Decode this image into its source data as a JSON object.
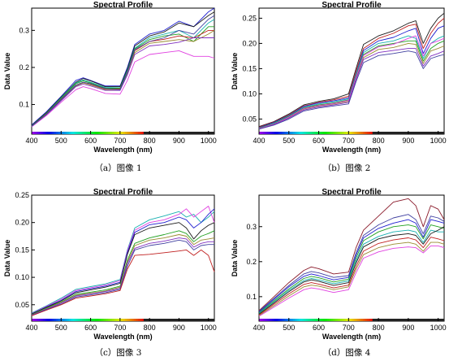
{
  "chart_data": [
    {
      "type": "line",
      "title": "Spectral Profile",
      "xlabel": "Wavelength (nm)",
      "ylabel": "Data Value",
      "caption": "（a）图像 1",
      "xlim": [
        400,
        1020
      ],
      "ylim": [
        0.02,
        0.36
      ],
      "x_ticks": [
        "400",
        "500",
        "600",
        "700",
        "800",
        "900",
        "1000"
      ],
      "y_ticks": [
        "0.1",
        "0.2",
        "0.3"
      ],
      "x": [
        400,
        450,
        500,
        550,
        575,
        600,
        650,
        700,
        725,
        750,
        800,
        850,
        900,
        950,
        1000,
        1020
      ],
      "series": [
        {
          "color": "#1f1fd0",
          "values": [
            0.045,
            0.08,
            0.122,
            0.165,
            0.172,
            0.165,
            0.15,
            0.15,
            0.2,
            0.262,
            0.29,
            0.3,
            0.325,
            0.31,
            0.35,
            0.36
          ]
        },
        {
          "color": "#1a1a1a",
          "values": [
            0.043,
            0.078,
            0.12,
            0.16,
            0.17,
            0.164,
            0.148,
            0.148,
            0.196,
            0.258,
            0.285,
            0.296,
            0.32,
            0.31,
            0.34,
            0.35
          ]
        },
        {
          "color": "#18b0b0",
          "values": [
            0.042,
            0.076,
            0.118,
            0.158,
            0.166,
            0.16,
            0.146,
            0.145,
            0.192,
            0.252,
            0.28,
            0.29,
            0.3,
            0.28,
            0.32,
            0.33
          ]
        },
        {
          "color": "#20a020",
          "values": [
            0.042,
            0.075,
            0.116,
            0.156,
            0.164,
            0.158,
            0.144,
            0.144,
            0.19,
            0.25,
            0.275,
            0.285,
            0.29,
            0.27,
            0.31,
            0.31
          ]
        },
        {
          "color": "#c02020",
          "values": [
            0.041,
            0.074,
            0.114,
            0.152,
            0.16,
            0.155,
            0.142,
            0.142,
            0.186,
            0.245,
            0.27,
            0.276,
            0.285,
            0.28,
            0.3,
            0.3
          ]
        },
        {
          "color": "#9a8a30",
          "values": [
            0.041,
            0.073,
            0.112,
            0.15,
            0.158,
            0.153,
            0.14,
            0.14,
            0.184,
            0.24,
            0.265,
            0.27,
            0.275,
            0.27,
            0.29,
            0.3
          ]
        },
        {
          "color": "#8030c0",
          "values": [
            0.04,
            0.072,
            0.11,
            0.148,
            0.155,
            0.15,
            0.138,
            0.138,
            0.18,
            0.235,
            0.258,
            0.262,
            0.268,
            0.28,
            0.28,
            0.28
          ]
        },
        {
          "color": "#e040e0",
          "values": [
            0.04,
            0.07,
            0.106,
            0.14,
            0.148,
            0.143,
            0.13,
            0.128,
            0.165,
            0.215,
            0.235,
            0.24,
            0.245,
            0.23,
            0.23,
            0.225
          ]
        },
        {
          "color": "#4040a0",
          "values": [
            0.041,
            0.073,
            0.113,
            0.152,
            0.16,
            0.156,
            0.143,
            0.14,
            0.188,
            0.248,
            0.27,
            0.28,
            0.3,
            0.29,
            0.33,
            0.34
          ]
        }
      ]
    },
    {
      "type": "line",
      "title": "Spectral Profile",
      "xlabel": "Wavelength (nm)",
      "ylabel": "Data Value",
      "caption": "（b）图像 2",
      "xlim": [
        400,
        1020
      ],
      "ylim": [
        0.02,
        0.27
      ],
      "x_ticks": [
        "400",
        "500",
        "600",
        "700",
        "800",
        "900",
        "1000"
      ],
      "y_ticks": [
        "0.05",
        "0.10",
        "0.15",
        "0.20",
        "0.25"
      ],
      "x": [
        400,
        450,
        500,
        550,
        600,
        650,
        700,
        725,
        750,
        800,
        850,
        900,
        925,
        950,
        975,
        1000,
        1020
      ],
      "series": [
        {
          "color": "#1a1a1a",
          "values": [
            0.035,
            0.045,
            0.06,
            0.078,
            0.085,
            0.09,
            0.1,
            0.15,
            0.198,
            0.215,
            0.225,
            0.24,
            0.245,
            0.2,
            0.23,
            0.25,
            0.26
          ]
        },
        {
          "color": "#c02020",
          "values": [
            0.034,
            0.044,
            0.058,
            0.076,
            0.083,
            0.088,
            0.095,
            0.145,
            0.19,
            0.21,
            0.22,
            0.235,
            0.238,
            0.19,
            0.22,
            0.24,
            0.25
          ]
        },
        {
          "color": "#1f1fd0",
          "values": [
            0.033,
            0.043,
            0.057,
            0.075,
            0.082,
            0.086,
            0.092,
            0.14,
            0.186,
            0.205,
            0.212,
            0.225,
            0.23,
            0.18,
            0.21,
            0.23,
            0.235
          ]
        },
        {
          "color": "#18b0b0",
          "values": [
            0.032,
            0.042,
            0.056,
            0.073,
            0.08,
            0.084,
            0.09,
            0.138,
            0.182,
            0.2,
            0.205,
            0.215,
            0.21,
            0.17,
            0.2,
            0.21,
            0.215
          ]
        },
        {
          "color": "#20a020",
          "values": [
            0.032,
            0.041,
            0.055,
            0.072,
            0.078,
            0.082,
            0.088,
            0.135,
            0.178,
            0.195,
            0.2,
            0.205,
            0.205,
            0.165,
            0.19,
            0.2,
            0.205
          ]
        },
        {
          "color": "#9a8a30",
          "values": [
            0.031,
            0.04,
            0.053,
            0.07,
            0.076,
            0.08,
            0.085,
            0.13,
            0.172,
            0.188,
            0.192,
            0.2,
            0.198,
            0.16,
            0.185,
            0.19,
            0.195
          ]
        },
        {
          "color": "#e040e0",
          "values": [
            0.031,
            0.04,
            0.054,
            0.071,
            0.077,
            0.081,
            0.087,
            0.133,
            0.176,
            0.193,
            0.198,
            0.21,
            0.215,
            0.175,
            0.2,
            0.205,
            0.21
          ]
        },
        {
          "color": "#8030c0",
          "values": [
            0.03,
            0.039,
            0.052,
            0.068,
            0.074,
            0.078,
            0.083,
            0.128,
            0.168,
            0.182,
            0.186,
            0.19,
            0.19,
            0.155,
            0.175,
            0.18,
            0.185
          ]
        },
        {
          "color": "#4040a0",
          "values": [
            0.03,
            0.038,
            0.05,
            0.066,
            0.072,
            0.076,
            0.08,
            0.124,
            0.162,
            0.176,
            0.18,
            0.185,
            0.182,
            0.15,
            0.17,
            0.175,
            0.178
          ]
        }
      ]
    },
    {
      "type": "line",
      "title": "Spectral Profile",
      "xlabel": "Wavelength (nm)",
      "ylabel": "Data Value",
      "caption": "（c）图像 3",
      "xlim": [
        400,
        1020
      ],
      "ylim": [
        0.02,
        0.25
      ],
      "x_ticks": [
        "400",
        "500",
        "600",
        "700",
        "800",
        "900",
        "1000"
      ],
      "y_ticks": [
        "0.05",
        "0.10",
        "0.15",
        "0.20",
        "0.25"
      ],
      "x": [
        400,
        450,
        500,
        550,
        600,
        650,
        700,
        725,
        750,
        800,
        850,
        900,
        925,
        950,
        975,
        1000,
        1020
      ],
      "series": [
        {
          "color": "#18b0b0",
          "values": [
            0.035,
            0.048,
            0.062,
            0.078,
            0.083,
            0.088,
            0.096,
            0.15,
            0.19,
            0.205,
            0.212,
            0.22,
            0.21,
            0.215,
            0.2,
            0.21,
            0.22
          ]
        },
        {
          "color": "#e040e0",
          "values": [
            0.034,
            0.047,
            0.06,
            0.076,
            0.081,
            0.086,
            0.094,
            0.148,
            0.186,
            0.2,
            0.205,
            0.215,
            0.225,
            0.21,
            0.22,
            0.23,
            0.2
          ]
        },
        {
          "color": "#1f1fd0",
          "values": [
            0.033,
            0.046,
            0.058,
            0.074,
            0.079,
            0.084,
            0.091,
            0.145,
            0.182,
            0.196,
            0.2,
            0.21,
            0.205,
            0.19,
            0.2,
            0.215,
            0.225
          ]
        },
        {
          "color": "#1a1a1a",
          "values": [
            0.033,
            0.045,
            0.057,
            0.072,
            0.077,
            0.082,
            0.089,
            0.142,
            0.178,
            0.19,
            0.195,
            0.2,
            0.19,
            0.17,
            0.185,
            0.195,
            0.2
          ]
        },
        {
          "color": "#20a020",
          "values": [
            0.032,
            0.044,
            0.055,
            0.069,
            0.073,
            0.077,
            0.084,
            0.132,
            0.162,
            0.172,
            0.178,
            0.185,
            0.18,
            0.165,
            0.175,
            0.18,
            0.185
          ]
        },
        {
          "color": "#9a8a30",
          "values": [
            0.031,
            0.043,
            0.054,
            0.067,
            0.071,
            0.075,
            0.082,
            0.128,
            0.158,
            0.168,
            0.172,
            0.178,
            0.175,
            0.16,
            0.168,
            0.17,
            0.172
          ]
        },
        {
          "color": "#8030c0",
          "values": [
            0.031,
            0.042,
            0.053,
            0.066,
            0.07,
            0.074,
            0.08,
            0.125,
            0.153,
            0.162,
            0.166,
            0.172,
            0.17,
            0.155,
            0.162,
            0.165,
            0.165
          ]
        },
        {
          "color": "#4040a0",
          "values": [
            0.03,
            0.041,
            0.051,
            0.064,
            0.068,
            0.072,
            0.078,
            0.12,
            0.15,
            0.158,
            0.162,
            0.168,
            0.165,
            0.15,
            0.158,
            0.16,
            0.16
          ]
        },
        {
          "color": "#c02020",
          "values": [
            0.03,
            0.04,
            0.05,
            0.062,
            0.066,
            0.07,
            0.076,
            0.115,
            0.14,
            0.142,
            0.145,
            0.148,
            0.15,
            0.14,
            0.15,
            0.14,
            0.11
          ]
        }
      ]
    },
    {
      "type": "line",
      "title": "Spectral Profile",
      "xlabel": "Wavelength (nm)",
      "ylabel": "Data Value",
      "caption": "（d）图像 4",
      "xlim": [
        400,
        1020
      ],
      "ylim": [
        0.03,
        0.39
      ],
      "x_ticks": [
        "400",
        "500",
        "600",
        "700",
        "800",
        "900",
        "1000"
      ],
      "y_ticks": [
        "0.1",
        "0.2",
        "0.3"
      ],
      "x": [
        400,
        450,
        500,
        550,
        575,
        600,
        650,
        700,
        725,
        750,
        800,
        850,
        900,
        925,
        950,
        975,
        1000,
        1020
      ],
      "series": [
        {
          "color": "#8a1a2a",
          "values": [
            0.06,
            0.1,
            0.14,
            0.175,
            0.185,
            0.18,
            0.165,
            0.17,
            0.24,
            0.29,
            0.33,
            0.37,
            0.38,
            0.36,
            0.3,
            0.36,
            0.35,
            0.32
          ]
        },
        {
          "color": "#4040a0",
          "values": [
            0.058,
            0.095,
            0.132,
            0.165,
            0.172,
            0.168,
            0.155,
            0.16,
            0.225,
            0.275,
            0.305,
            0.325,
            0.335,
            0.32,
            0.28,
            0.33,
            0.325,
            0.315
          ]
        },
        {
          "color": "#1f1fd0",
          "values": [
            0.056,
            0.092,
            0.128,
            0.158,
            0.165,
            0.16,
            0.148,
            0.155,
            0.218,
            0.268,
            0.295,
            0.31,
            0.32,
            0.31,
            0.27,
            0.32,
            0.315,
            0.31
          ]
        },
        {
          "color": "#20a020",
          "values": [
            0.054,
            0.088,
            0.122,
            0.152,
            0.158,
            0.154,
            0.142,
            0.15,
            0.21,
            0.26,
            0.285,
            0.3,
            0.305,
            0.3,
            0.265,
            0.305,
            0.3,
            0.295
          ]
        },
        {
          "color": "#18b0b0",
          "values": [
            0.052,
            0.085,
            0.118,
            0.146,
            0.152,
            0.148,
            0.137,
            0.145,
            0.202,
            0.25,
            0.272,
            0.285,
            0.29,
            0.285,
            0.255,
            0.29,
            0.285,
            0.285
          ]
        },
        {
          "color": "#1a1a1a",
          "values": [
            0.05,
            0.082,
            0.114,
            0.142,
            0.148,
            0.144,
            0.132,
            0.14,
            0.196,
            0.242,
            0.265,
            0.275,
            0.28,
            0.275,
            0.25,
            0.28,
            0.29,
            0.3
          ]
        },
        {
          "color": "#c02020",
          "values": [
            0.048,
            0.078,
            0.108,
            0.135,
            0.14,
            0.136,
            0.125,
            0.133,
            0.186,
            0.23,
            0.252,
            0.262,
            0.268,
            0.262,
            0.24,
            0.27,
            0.265,
            0.26
          ]
        },
        {
          "color": "#9a8a30",
          "values": [
            0.046,
            0.074,
            0.102,
            0.128,
            0.133,
            0.13,
            0.12,
            0.128,
            0.178,
            0.22,
            0.24,
            0.25,
            0.255,
            0.25,
            0.23,
            0.255,
            0.255,
            0.25
          ]
        },
        {
          "color": "#e040e0",
          "values": [
            0.044,
            0.07,
            0.096,
            0.12,
            0.125,
            0.122,
            0.112,
            0.12,
            0.168,
            0.21,
            0.228,
            0.238,
            0.242,
            0.24,
            0.225,
            0.245,
            0.245,
            0.24
          ]
        }
      ]
    }
  ]
}
